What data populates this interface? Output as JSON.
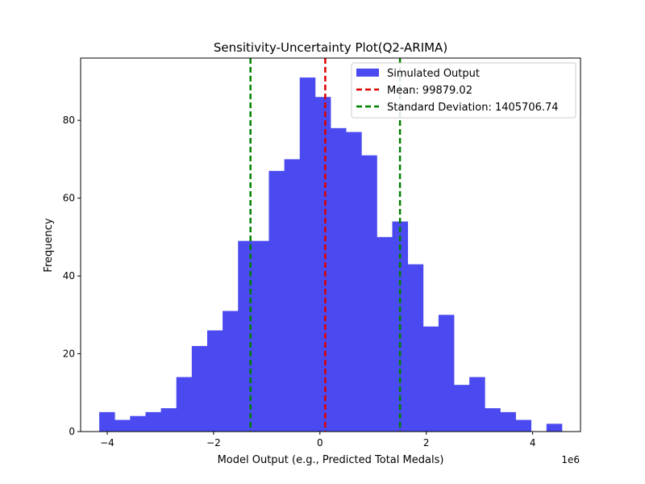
{
  "chart_data": {
    "type": "bar",
    "title": "Sensitivity-Uncertainty Plot(Q2-ARIMA)",
    "xlabel": "Model Output (e.g., Predicted Total Medals)",
    "ylabel": "Frequency",
    "x_offset_label": "1e6",
    "xlim": [
      -4.5,
      4.9
    ],
    "ylim": [
      0,
      96
    ],
    "x_ticks": [
      -4,
      -2,
      0,
      2,
      4
    ],
    "x_tick_labels": [
      "−4",
      "−2",
      "0",
      "2",
      "4"
    ],
    "y_ticks": [
      0,
      20,
      40,
      60,
      80
    ],
    "y_tick_labels": [
      "0",
      "20",
      "40",
      "60",
      "80"
    ],
    "grid": false,
    "legend_position": "top-right",
    "histogram": {
      "name": "Simulated Output",
      "color": "#4a4af0",
      "bin_edges": [
        -4.15,
        -3.86,
        -3.57,
        -3.28,
        -2.99,
        -2.7,
        -2.41,
        -2.12,
        -1.83,
        -1.54,
        -1.25,
        -0.96,
        -0.67,
        -0.38,
        -0.09,
        0.2,
        0.49,
        0.78,
        1.07,
        1.36,
        1.65,
        1.94,
        2.23,
        2.52,
        2.81,
        3.1,
        3.39,
        3.68,
        3.97,
        4.26,
        4.55
      ],
      "counts": [
        5,
        3,
        4,
        5,
        6,
        14,
        22,
        26,
        31,
        49,
        49,
        67,
        70,
        91,
        86,
        78,
        77,
        71,
        50,
        54,
        43,
        27,
        30,
        12,
        14,
        6,
        5,
        3,
        0,
        2
      ]
    },
    "vlines": [
      {
        "name": "Mean: 99879.02",
        "x": 0.0999,
        "color": "#dd0000"
      },
      {
        "name": "Standard Deviation: 1405706.74",
        "x": -1.3058,
        "color": "#008000",
        "show_in_legend": true
      },
      {
        "name": "Standard Deviation: 1405706.74",
        "x": 1.5056,
        "color": "#008000",
        "show_in_legend": false
      }
    ],
    "legend": [
      {
        "label": "Simulated Output",
        "kind": "patch",
        "color": "#4a4af0"
      },
      {
        "label": "Mean: 99879.02",
        "kind": "dash",
        "color": "#dd0000"
      },
      {
        "label": "Standard Deviation: 1405706.74",
        "kind": "dash",
        "color": "#008000"
      }
    ]
  }
}
